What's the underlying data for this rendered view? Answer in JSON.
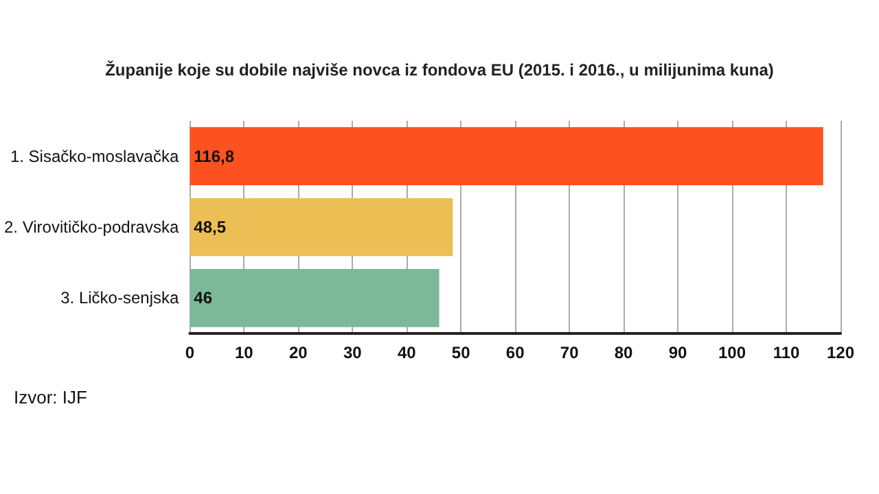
{
  "chart_data": {
    "type": "bar",
    "orientation": "horizontal",
    "title": "Županije koje su dobile najviše novca iz fondova EU (2015. i 2016., u milijunima kuna)",
    "categories": [
      "1. Sisačko-moslavačka",
      "2. Virovitičko-podravska",
      "3. Ličko-senjska"
    ],
    "values": [
      116.8,
      48.5,
      46
    ],
    "colors": [
      "#fc5220",
      "#ecbf55",
      "#7cb999"
    ],
    "value_labels": [
      "116,8",
      "48,5",
      "46"
    ],
    "xlim": [
      0,
      120
    ],
    "xticks": [
      0,
      10,
      20,
      30,
      40,
      50,
      60,
      70,
      80,
      90,
      100,
      110,
      120
    ],
    "grid": "x",
    "annotations": [
      "Izvor: IJF"
    ]
  }
}
